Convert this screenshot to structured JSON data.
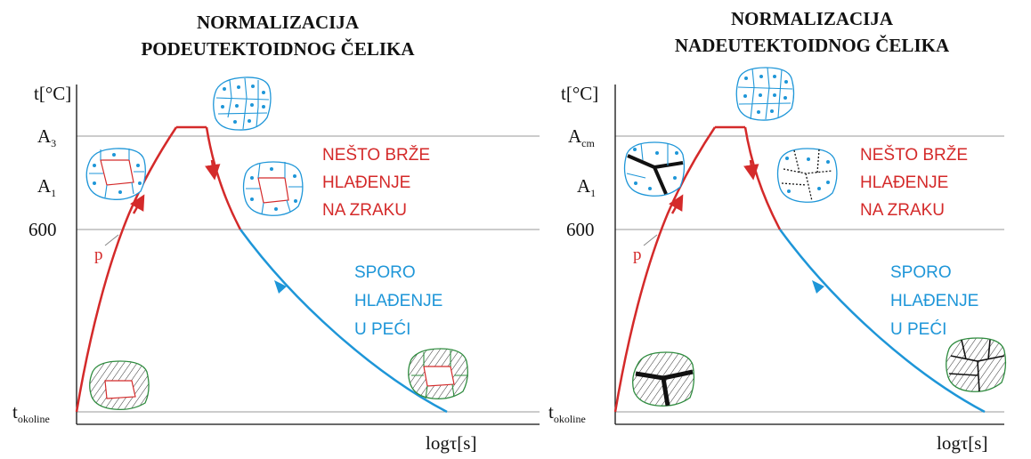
{
  "panels": [
    {
      "title_line1": "NORMALIZACIJA",
      "title_line2": "PODEUTEKTOIDNOG ČELIKA",
      "y_axis_label": "t[°C]",
      "x_axis_label": "logτ[s]",
      "levels": [
        {
          "main": "A",
          "sub": "3"
        },
        {
          "main": "A",
          "sub": "1"
        },
        {
          "main": "600",
          "sub": ""
        },
        {
          "main": "t",
          "sub": "okoline"
        }
      ],
      "point_label": "p",
      "fast_cooling": [
        "NEŠTO BRŽE",
        "HLAĐENJE",
        "NA ZRAKU"
      ],
      "slow_cooling": [
        "SPORO",
        "HLAĐENJE",
        "U PEĆI"
      ]
    },
    {
      "title_line1": "NORMALIZACIJA",
      "title_line2": "NADEUTEKTOIDNOG ČELIKA",
      "y_axis_label": "t[°C]",
      "x_axis_label": "logτ[s]",
      "levels": [
        {
          "main": "A",
          "sub": "cm"
        },
        {
          "main": "A",
          "sub": "1"
        },
        {
          "main": "600",
          "sub": ""
        },
        {
          "main": "t",
          "sub": "okoline"
        }
      ],
      "point_label": "p",
      "fast_cooling": [
        "NEŠTO BRŽE",
        "HLAĐENJE",
        "NA ZRAKU"
      ],
      "slow_cooling": [
        "SPORO",
        "HLAĐENJE",
        "U PEĆI"
      ]
    }
  ],
  "colors": {
    "heating": "#d42a2a",
    "slow_cooling": "#1e96d8",
    "austenite_grain": "#1e96d8",
    "pearlite_grain": "#2e8b3e",
    "ferrite_grain": "#d42a2a"
  }
}
